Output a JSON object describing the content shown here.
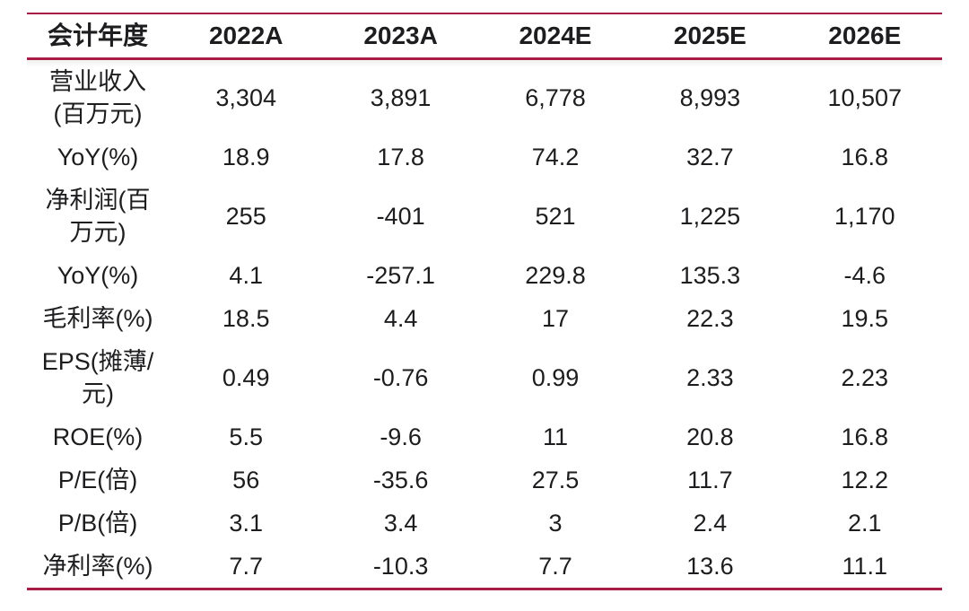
{
  "colors": {
    "accent_line": "#a81d45",
    "text": "#1d1d1f",
    "background": "#ffffff"
  },
  "table": {
    "header": [
      "会计年度",
      "2022A",
      "2023A",
      "2024E",
      "2025E",
      "2026E"
    ],
    "rows": [
      {
        "label": "营业收入(百万元)",
        "values": [
          "3,304",
          "3,891",
          "6,778",
          "8,993",
          "10,507"
        ]
      },
      {
        "label": "YoY(%)",
        "values": [
          "18.9",
          "17.8",
          "74.2",
          "32.7",
          "16.8"
        ]
      },
      {
        "label": "净利润(百万元)",
        "values": [
          "255",
          "-401",
          "521",
          "1,225",
          "1,170"
        ]
      },
      {
        "label": "YoY(%)",
        "values": [
          "4.1",
          "-257.1",
          "229.8",
          "135.3",
          "-4.6"
        ]
      },
      {
        "label": "毛利率(%)",
        "values": [
          "18.5",
          "4.4",
          "17",
          "22.3",
          "19.5"
        ]
      },
      {
        "label": "EPS(摊薄/元)",
        "values": [
          "0.49",
          "-0.76",
          "0.99",
          "2.33",
          "2.23"
        ]
      },
      {
        "label": "ROE(%)",
        "values": [
          "5.5",
          "-9.6",
          "11",
          "20.8",
          "16.8"
        ]
      },
      {
        "label": "P/E(倍)",
        "values": [
          "56",
          "-35.6",
          "27.5",
          "11.7",
          "12.2"
        ]
      },
      {
        "label": "P/B(倍)",
        "values": [
          "3.1",
          "3.4",
          "3",
          "2.4",
          "2.1"
        ]
      },
      {
        "label": "净利率(%)",
        "values": [
          "7.7",
          "-10.3",
          "7.7",
          "13.6",
          "11.1"
        ]
      }
    ]
  },
  "chart_data": {
    "type": "table",
    "title": "",
    "columns": [
      "会计年度",
      "2022A",
      "2023A",
      "2024E",
      "2025E",
      "2026E"
    ],
    "rows": [
      {
        "metric": "营业收入(百万元)",
        "2022A": 3304,
        "2023A": 3891,
        "2024E": 6778,
        "2025E": 8993,
        "2026E": 10507
      },
      {
        "metric": "YoY(%)",
        "2022A": 18.9,
        "2023A": 17.8,
        "2024E": 74.2,
        "2025E": 32.7,
        "2026E": 16.8
      },
      {
        "metric": "净利润(百万元)",
        "2022A": 255,
        "2023A": -401,
        "2024E": 521,
        "2025E": 1225,
        "2026E": 1170
      },
      {
        "metric": "YoY(%)",
        "2022A": 4.1,
        "2023A": -257.1,
        "2024E": 229.8,
        "2025E": 135.3,
        "2026E": -4.6
      },
      {
        "metric": "毛利率(%)",
        "2022A": 18.5,
        "2023A": 4.4,
        "2024E": 17,
        "2025E": 22.3,
        "2026E": 19.5
      },
      {
        "metric": "EPS(摊薄/元)",
        "2022A": 0.49,
        "2023A": -0.76,
        "2024E": 0.99,
        "2025E": 2.33,
        "2026E": 2.23
      },
      {
        "metric": "ROE(%)",
        "2022A": 5.5,
        "2023A": -9.6,
        "2024E": 11,
        "2025E": 20.8,
        "2026E": 16.8
      },
      {
        "metric": "P/E(倍)",
        "2022A": 56,
        "2023A": -35.6,
        "2024E": 27.5,
        "2025E": 11.7,
        "2026E": 12.2
      },
      {
        "metric": "P/B(倍)",
        "2022A": 3.1,
        "2023A": 3.4,
        "2024E": 3,
        "2025E": 2.4,
        "2026E": 2.1
      },
      {
        "metric": "净利率(%)",
        "2022A": 7.7,
        "2023A": -10.3,
        "2024E": 7.7,
        "2025E": 13.6,
        "2026E": 11.1
      }
    ]
  }
}
